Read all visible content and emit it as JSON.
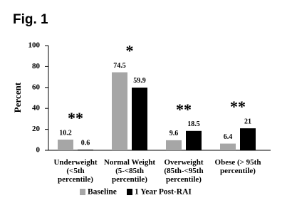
{
  "chart_data": {
    "type": "bar",
    "title": "Fig. 1",
    "y_label": "Percent",
    "categories": [
      [
        "Underweight",
        "(<5th",
        "percentile)"
      ],
      [
        "Normal Weight",
        "(5-<85th",
        "percentile)"
      ],
      [
        "Overweight",
        "(85th-<95th",
        "percentile)"
      ],
      [
        "Obese (> 95th",
        "percentile)"
      ]
    ],
    "series": [
      {
        "name": "Baseline",
        "color": "#a6a6a6",
        "values": [
          10.2,
          74.5,
          9.6,
          6.4
        ]
      },
      {
        "name": "1 Year Post-RAI",
        "color": "#000000",
        "values": [
          0.6,
          59.9,
          18.5,
          21
        ]
      }
    ],
    "annotations": [
      "**",
      "*",
      "**",
      "**"
    ],
    "ylim": [
      0,
      100
    ],
    "yticks": [
      0,
      20,
      40,
      60,
      80,
      100
    ],
    "legend": "bottom"
  }
}
